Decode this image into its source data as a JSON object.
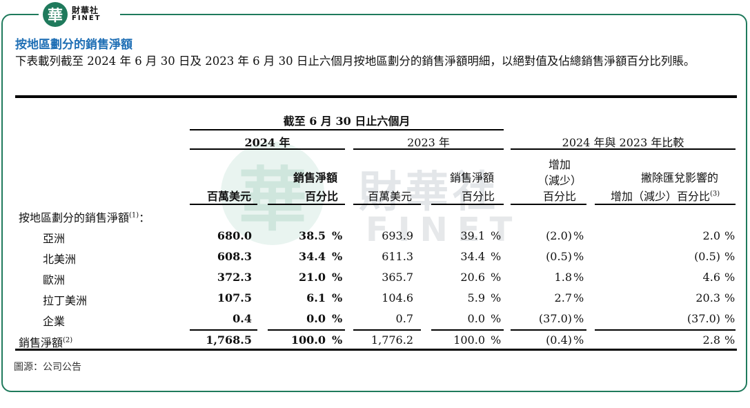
{
  "brand": {
    "mark": "華",
    "cn": "財華社",
    "en": "FINET"
  },
  "watermark": {
    "mark": "華",
    "cn": "財華社",
    "en": "FINET"
  },
  "title": "按地區劃分的銷售淨額",
  "intro": "下表載列截至 2024 年 6 月 30 日及 2023 年 6 月 30 日止六個月按地區劃分的銷售淨額明細，以絕對值及佔總銷售淨額百分比列賬。",
  "headers": {
    "period": "截至 6 月 30 日止六個月",
    "y2024": "2024 年",
    "y2023": "2023 年",
    "compare": "2024 年與 2023 年比較",
    "usd_m": "百萬美元",
    "net_sales_pct_l1": "銷售淨額",
    "net_sales_pct_l2": "百分比",
    "inc_l1": "增加",
    "inc_l2": "（減少）",
    "inc_l3": "百分比",
    "fx_l1": "撇除匯兌影響的",
    "fx_l2": "增加（減少）百分比",
    "fx_sup": "(3)"
  },
  "section_label": "按地區劃分的銷售淨額",
  "section_sup": "(1)",
  "section_colon": "：",
  "rows": [
    {
      "region": "亞洲",
      "v2024": "680.0",
      "p2024": "38.5",
      "v2023": "693.9",
      "p2023": "39.1",
      "chg": "(2.0)",
      "fx": "2.0"
    },
    {
      "region": "北美洲",
      "v2024": "608.3",
      "p2024": "34.4",
      "v2023": "611.3",
      "p2023": "34.4",
      "chg": "(0.5)",
      "fx": "(0.5)"
    },
    {
      "region": "歐洲",
      "v2024": "372.3",
      "p2024": "21.0",
      "v2023": "365.7",
      "p2023": "20.6",
      "chg": "1.8",
      "fx": "4.6"
    },
    {
      "region": "拉丁美洲",
      "v2024": "107.5",
      "p2024": "6.1",
      "v2023": "104.6",
      "p2023": "5.9",
      "chg": "2.7",
      "fx": "20.3"
    },
    {
      "region": "企業",
      "v2024": "0.4",
      "p2024": "0.0",
      "v2023": "0.7",
      "p2023": "0.0",
      "chg": "(37.0)",
      "fx": "(37.0)"
    }
  ],
  "total": {
    "label": "銷售淨額",
    "sup": "(2)",
    "v2024": "1,768.5",
    "p2024": "100.0",
    "v2023": "1,776.2",
    "p2023": "100.0",
    "chg": "(0.4)",
    "fx": "2.8"
  },
  "pct": "%",
  "source": "圖源：公司公告"
}
